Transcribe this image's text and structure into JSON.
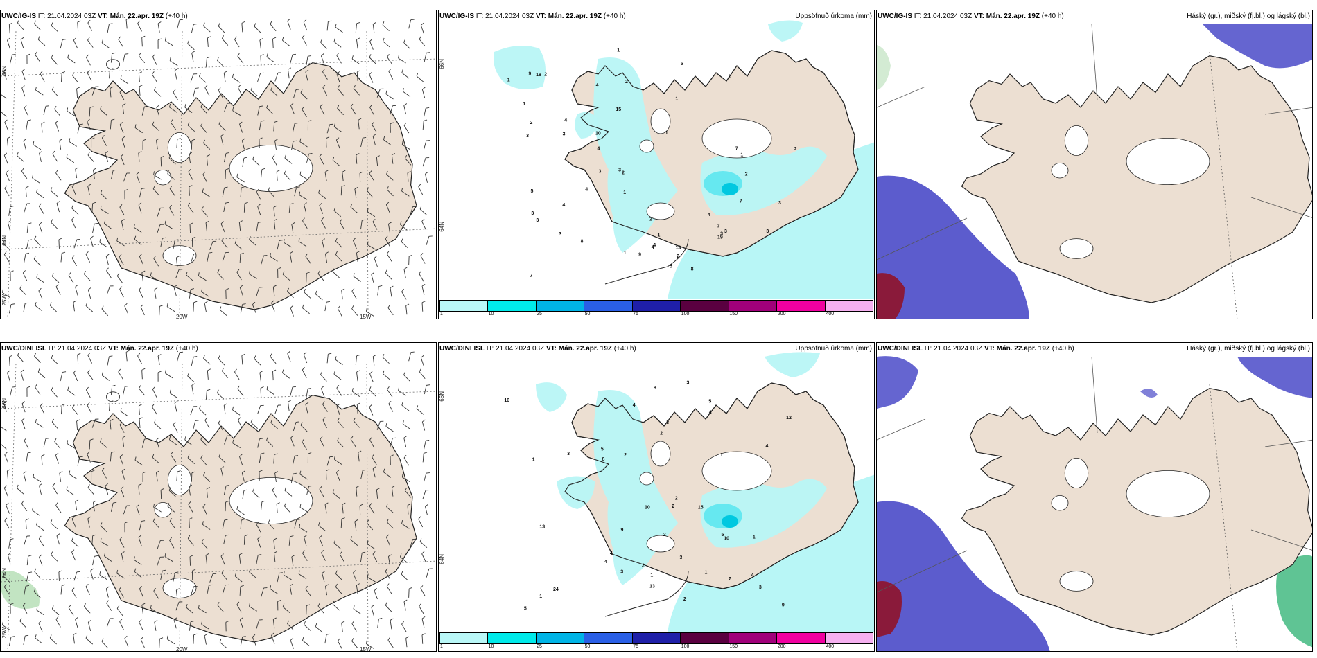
{
  "colors": {
    "land": "#ecdfd2",
    "coast": "#222222",
    "precip_light": "#b8f6f6",
    "precip_mid": "#66e8f0",
    "high_cloud": "#a8d8a8",
    "mid_cloud": "#4a4ac8",
    "low_cloud": "#8a1a3a"
  },
  "panels": {
    "top": {
      "wind": {
        "model": "UWC/IG-IS",
        "it_label": "IT:",
        "it_value": "21.04.2024 03Z",
        "vt_label": "VT:",
        "vt_value": "Mán. 22.apr. 19Z",
        "lead": "(+40 h)",
        "lat_labels": [
          "66N",
          "64N"
        ],
        "lon_labels": [
          "20W",
          "15W",
          "25W"
        ]
      },
      "precip": {
        "model": "UWC/IG-IS",
        "it_label": "IT:",
        "it_value": "21.04.2024 03Z",
        "vt_label": "VT:",
        "vt_value": "Mán. 22.apr. 19Z",
        "lead": "(+40 h)",
        "right_title": "Uppsöfnuð úrkoma (mm)",
        "lat_labels": [
          "66N",
          "64N"
        ],
        "numbers": [
          "1",
          "1",
          "1",
          "1",
          "2",
          "3",
          "4",
          "5",
          "7",
          "4",
          "4",
          "3",
          "9",
          "8",
          "2",
          "2",
          "7",
          "3",
          "3",
          "1",
          "2",
          "2",
          "3",
          "4",
          "13",
          "8",
          "5",
          "5",
          "4",
          "10",
          "9",
          "4",
          "7",
          "2",
          "19",
          "15",
          "18",
          "3",
          "2",
          "4",
          "7",
          "3",
          "3",
          "3",
          "3",
          "1",
          "2",
          "1",
          "1",
          "2",
          "4",
          "1",
          "3"
        ]
      },
      "cloud": {
        "model": "UWC/IG-IS",
        "it_label": "IT:",
        "it_value": "21.04.2024 03Z",
        "vt_label": "VT:",
        "vt_value": "Mán. 22.apr. 19Z",
        "lead": "(+40 h)",
        "right_title": "Háský (gr.), miðský (fj.bl.) og lágský (bl.)"
      }
    },
    "bottom": {
      "wind": {
        "model": "UWC/DINI ISL",
        "it_label": "IT:",
        "it_value": "21.04.2024 03Z",
        "vt_label": "VT:",
        "vt_value": "Mán. 22.apr. 19Z",
        "lead": "(+40 h)",
        "lat_labels": [
          "66N",
          "64N"
        ],
        "lon_labels": [
          "20W",
          "15W",
          "25W"
        ]
      },
      "precip": {
        "model": "UWC/DINI ISL",
        "it_label": "IT:",
        "it_value": "21.04.2024 03Z",
        "vt_label": "VT:",
        "vt_value": "Mán. 22.apr. 19Z",
        "lead": "(+40 h)",
        "right_title": "Uppsöfnuð úrkoma (mm)",
        "lat_labels": [
          "66N",
          "64N"
        ],
        "numbers": [
          "1",
          "1",
          "2",
          "2",
          "4",
          "3",
          "4",
          "5",
          "7",
          "4",
          "9",
          "8",
          "3",
          "8",
          "1",
          "5",
          "5",
          "13",
          "10",
          "12",
          "10",
          "24",
          "13",
          "15",
          "10",
          "4",
          "2",
          "2",
          "4",
          "3",
          "3",
          "9",
          "3",
          "5",
          "2",
          "2",
          "1",
          "1",
          "1",
          "2",
          "3",
          "4"
        ]
      },
      "cloud": {
        "model": "UWC/DINI ISL",
        "it_label": "IT:",
        "it_value": "21.04.2024 03Z",
        "vt_label": "VT:",
        "vt_value": "Mán. 22.apr. 19Z",
        "lead": "(+40 h)",
        "right_title": "Háský (gr.), miðský (fj.bl.) og lágský (bl.)"
      }
    }
  },
  "colorbar": {
    "colors": [
      "#b9f7f7",
      "#00eaea",
      "#00b4e6",
      "#2a5fe6",
      "#1f1fa8",
      "#5a0040",
      "#a0007a",
      "#f000a0",
      "#f5b0f0"
    ],
    "ticks": [
      "1",
      "10",
      "25",
      "50",
      "75",
      "100",
      "150",
      "200",
      "400"
    ]
  }
}
